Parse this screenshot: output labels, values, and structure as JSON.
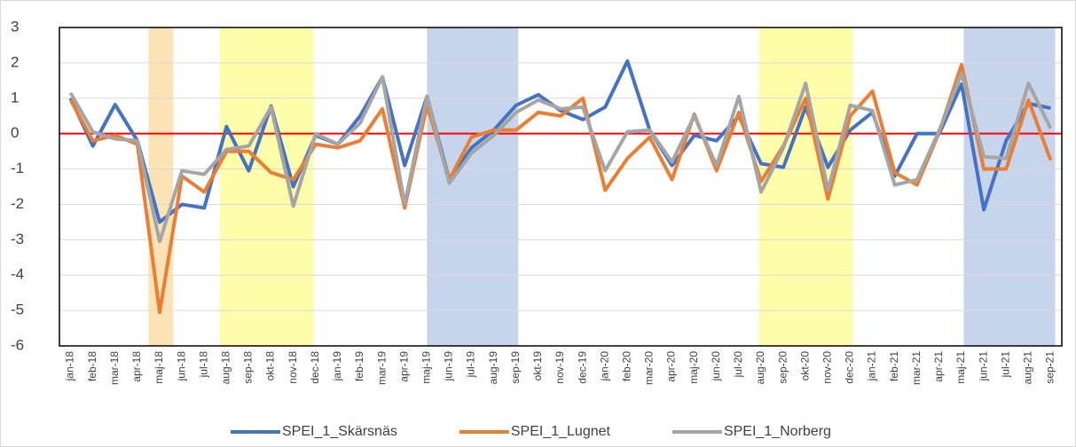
{
  "chart_data": {
    "type": "line",
    "categories": [
      "jan-18",
      "feb-18",
      "mar-18",
      "apr-18",
      "maj-18",
      "jun-18",
      "jul-18",
      "aug-18",
      "sep-18",
      "okt-18",
      "nov-18",
      "dec-18",
      "jan-19",
      "feb-19",
      "mar-19",
      "apr-19",
      "maj-19",
      "jun-19",
      "jul-19",
      "aug-19",
      "sep-19",
      "okt-19",
      "nov-19",
      "dec-19",
      "jan-20",
      "feb-20",
      "mar-20",
      "apr-20",
      "maj-20",
      "jun-20",
      "jul-20",
      "aug-20",
      "sep-20",
      "okt-20",
      "nov-20",
      "dec-20",
      "jan-21",
      "feb-21",
      "mar-21",
      "apr-21",
      "maj-21",
      "jun-21",
      "jul-21",
      "aug-21",
      "sep-21"
    ],
    "series": [
      {
        "name": "SPEI_1_Skärsnäs",
        "color": "#4472c4",
        "values": [
          1.0,
          -0.35,
          0.82,
          -0.2,
          -2.5,
          -2.0,
          -2.1,
          0.2,
          -1.05,
          0.78,
          -1.5,
          -0.05,
          -0.3,
          0.5,
          1.6,
          -0.9,
          1.05,
          -1.3,
          -0.4,
          0.1,
          0.8,
          1.1,
          0.65,
          0.4,
          0.75,
          2.05,
          0.1,
          -0.9,
          -0.05,
          -0.2,
          0.5,
          -0.85,
          -0.95,
          0.75,
          -0.95,
          0.1,
          0.6,
          -1.2,
          0.0,
          0.0,
          1.4,
          -2.15,
          -0.2,
          0.85,
          0.72
        ]
      },
      {
        "name": "SPEI_1_Lugnet",
        "color": "#ed7d31",
        "values": [
          0.95,
          -0.2,
          -0.05,
          -0.3,
          -5.05,
          -1.2,
          -1.65,
          -0.5,
          -0.5,
          -1.1,
          -1.3,
          -0.3,
          -0.4,
          -0.2,
          0.7,
          -2.1,
          0.8,
          -1.3,
          -0.1,
          0.1,
          0.1,
          0.6,
          0.5,
          1.0,
          -1.6,
          -0.7,
          -0.1,
          -1.3,
          0.55,
          -1.05,
          0.6,
          -1.35,
          -0.35,
          1.0,
          -1.85,
          0.5,
          1.2,
          -1.1,
          -1.45,
          0.05,
          1.95,
          -1.0,
          -1.0,
          0.95,
          -0.75
        ]
      },
      {
        "name": "SPEI_1_Norberg",
        "color": "#a5a5a5",
        "values": [
          1.15,
          0.05,
          -0.15,
          -0.2,
          -3.05,
          -1.05,
          -1.15,
          -0.45,
          -0.35,
          0.75,
          -2.05,
          0.0,
          -0.3,
          0.3,
          1.6,
          -2.0,
          1.05,
          -1.4,
          -0.55,
          -0.05,
          0.6,
          0.95,
          0.7,
          0.75,
          -1.05,
          0.05,
          0.1,
          -0.8,
          0.5,
          -0.9,
          1.05,
          -1.65,
          -0.4,
          1.42,
          -1.6,
          0.8,
          0.65,
          -1.45,
          -1.3,
          0.1,
          1.7,
          -0.65,
          -0.7,
          1.42,
          0.15
        ]
      }
    ],
    "ylim": [
      -6,
      3
    ],
    "yticks": [
      -6,
      -5,
      -4,
      -3,
      -2,
      -1,
      0,
      1,
      2,
      3
    ],
    "grid": true,
    "zero_line_color": "#ff0000",
    "legend": "bottom"
  }
}
